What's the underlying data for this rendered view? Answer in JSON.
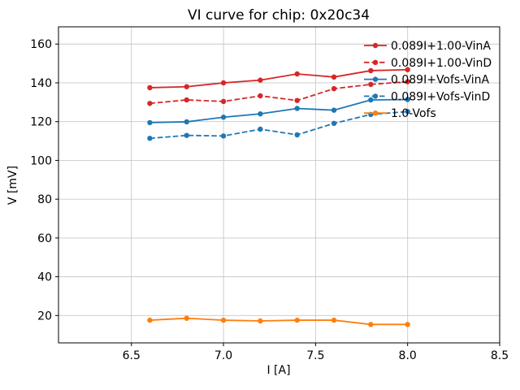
{
  "chart_data": {
    "type": "line",
    "title": "VI curve for chip: 0x20c34",
    "xlabel": "I [A]",
    "ylabel": "V [mV]",
    "xlim": [
      6.104,
      8.5
    ],
    "ylim": [
      5.9,
      168.9
    ],
    "x_ticks": [
      6.5,
      7.0,
      7.5,
      8.0,
      8.5
    ],
    "x_tick_labels": [
      "6.5",
      "7.0",
      "7.5",
      "8.0",
      "8.5"
    ],
    "y_ticks": [
      20,
      40,
      60,
      80,
      100,
      120,
      140,
      160
    ],
    "y_tick_labels": [
      "20",
      "40",
      "60",
      "80",
      "100",
      "120",
      "140",
      "160"
    ],
    "grid": true,
    "legend_position": "upper right",
    "x": [
      6.6,
      6.8,
      7.0,
      7.2,
      7.4,
      7.6,
      7.8,
      8.0
    ],
    "series": [
      {
        "name": "0.089I+1.00-VinA",
        "color": "#d62728",
        "style": "solid",
        "marker": "circle",
        "values": [
          137.5,
          138.0,
          140.0,
          141.4,
          144.6,
          143.0,
          146.3,
          146.8
        ]
      },
      {
        "name": "0.089I+1.00-VinD",
        "color": "#d62728",
        "style": "dashed",
        "marker": "circle",
        "values": [
          129.4,
          131.2,
          130.4,
          133.3,
          130.9,
          137.0,
          139.2,
          140.6
        ]
      },
      {
        "name": "0.089I+Vofs-VinA",
        "color": "#1f77b4",
        "style": "solid",
        "marker": "circle",
        "values": [
          119.5,
          119.9,
          122.3,
          124.0,
          126.8,
          125.9,
          131.2,
          131.4
        ]
      },
      {
        "name": "0.089I+Vofs-VinD",
        "color": "#1f77b4",
        "style": "dashed",
        "marker": "circle",
        "values": [
          111.4,
          112.9,
          112.6,
          116.1,
          113.2,
          119.1,
          123.7,
          125.2
        ]
      },
      {
        "name": "1.0-Vofs",
        "color": "#ff7f0e",
        "style": "solid",
        "marker": "circle",
        "values": [
          17.6,
          18.6,
          17.6,
          17.2,
          17.6,
          17.6,
          15.4,
          15.4
        ]
      }
    ]
  },
  "colors": {
    "background": "#ffffff",
    "grid": "#c9c9c9",
    "axis": "#000000",
    "red": "#d62728",
    "blue": "#1f77b4",
    "orange": "#ff7f0e"
  }
}
